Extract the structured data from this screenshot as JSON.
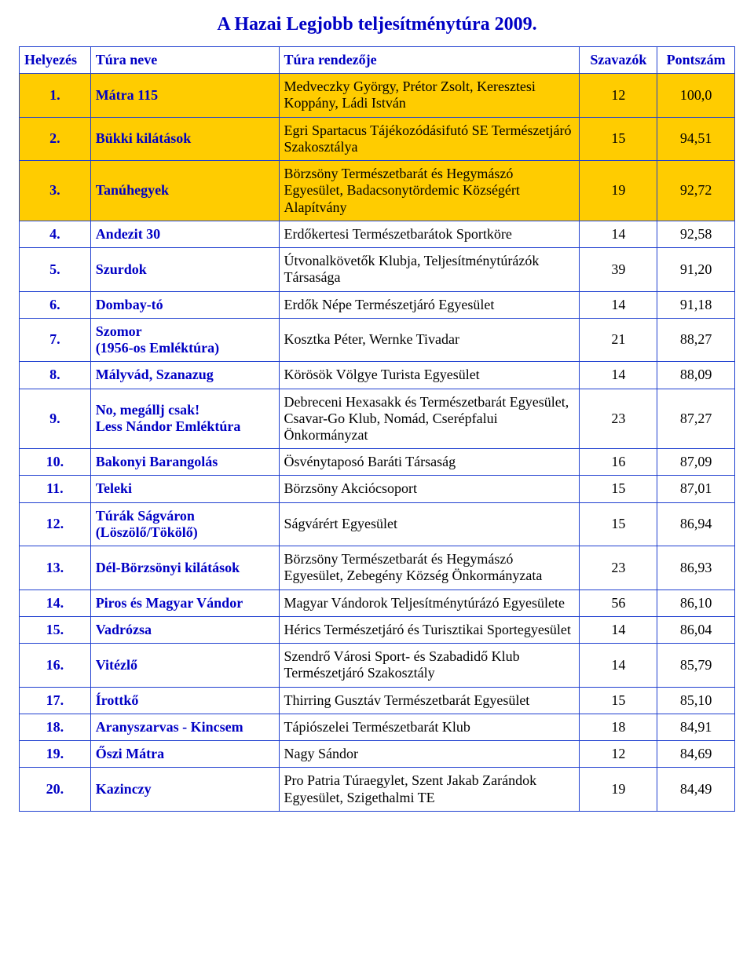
{
  "title": "A Hazai Legjobb teljesítménytúra 2009.",
  "colors": {
    "blue": "#0000c4",
    "border": "#2040d0",
    "highlight": "#ffcc00",
    "background": "#ffffff"
  },
  "columns": {
    "rank": "Helyezés",
    "name": "Túra neve",
    "org": "Túra rendezője",
    "votes": "Szavazók",
    "points": "Pontszám"
  },
  "rows": [
    {
      "rank": "1.",
      "name": "Mátra 115",
      "org": "Medveczky György, Prétor Zsolt, Keresztesi Koppány, Ládi István",
      "votes": "12",
      "points": "100,0",
      "hl": true
    },
    {
      "rank": "2.",
      "name": "Bükki kilátások",
      "org": "Egri Spartacus Tájékozódásifutó SE Természetjáró Szakosztálya",
      "votes": "15",
      "points": "94,51",
      "hl": true
    },
    {
      "rank": "3.",
      "name": "Tanúhegyek",
      "org": "Börzsöny Természetbarát és Hegymászó Egyesület, Badacsonytördemic Községért Alapítvány",
      "votes": "19",
      "points": "92,72",
      "hl": true
    },
    {
      "rank": "4.",
      "name": "Andezit 30",
      "org": "Erdőkertesi Természetbarátok Sportköre",
      "votes": "14",
      "points": "92,58",
      "hl": false
    },
    {
      "rank": "5.",
      "name": "Szurdok",
      "org": "Útvonalkövetők Klubja, Teljesítménytúrázók Társasága",
      "votes": "39",
      "points": "91,20",
      "hl": false
    },
    {
      "rank": "6.",
      "name": "Dombay-tó",
      "org": "Erdők Népe Természetjáró Egyesület",
      "votes": "14",
      "points": "91,18",
      "hl": false
    },
    {
      "rank": "7.",
      "name": "Szomor\n(1956-os Emléktúra)",
      "org": "Kosztka Péter, Wernke Tivadar",
      "votes": "21",
      "points": "88,27",
      "hl": false
    },
    {
      "rank": "8.",
      "name": "Mályvád, Szanazug",
      "org": "Körösök Völgye Turista Egyesület",
      "votes": "14",
      "points": "88,09",
      "hl": false
    },
    {
      "rank": "9.",
      "name": "No, megállj csak!\nLess Nándor Emléktúra",
      "org": "Debreceni Hexasakk és Természetbarát Egyesület, Csavar-Go Klub, Nomád, Cserépfalui Önkormányzat",
      "votes": "23",
      "points": "87,27",
      "hl": false
    },
    {
      "rank": "10.",
      "name": "Bakonyi Barangolás",
      "org": "Ösvénytaposó Baráti Társaság",
      "votes": "16",
      "points": "87,09",
      "hl": false
    },
    {
      "rank": "11.",
      "name": "Teleki",
      "org": "Börzsöny Akciócsoport",
      "votes": "15",
      "points": "87,01",
      "hl": false
    },
    {
      "rank": "12.",
      "name": "Túrák Ságváron\n(Löszölő/Tökölő)",
      "org": "Ságvárért Egyesület",
      "votes": "15",
      "points": "86,94",
      "hl": false
    },
    {
      "rank": "13.",
      "name": "Dél-Börzsönyi kilátások",
      "org": "Börzsöny Természetbarát és Hegymászó Egyesület, Zebegény Község Önkormányzata",
      "votes": "23",
      "points": "86,93",
      "hl": false
    },
    {
      "rank": "14.",
      "name": "Piros és Magyar Vándor",
      "org": "Magyar Vándorok Teljesítménytúrázó Egyesülete",
      "votes": "56",
      "points": "86,10",
      "hl": false
    },
    {
      "rank": "15.",
      "name": "Vadrózsa",
      "org": "Hérics Természetjáró és Turisztikai Sportegyesület",
      "votes": "14",
      "points": "86,04",
      "hl": false
    },
    {
      "rank": "16.",
      "name": "Vitézlő",
      "org": "Szendrő Városi Sport- és Szabadidő Klub Természetjáró Szakosztály",
      "votes": "14",
      "points": "85,79",
      "hl": false
    },
    {
      "rank": "17.",
      "name": "Írottkő",
      "org": "Thirring Gusztáv Természetbarát Egyesület",
      "votes": "15",
      "points": "85,10",
      "hl": false
    },
    {
      "rank": "18.",
      "name": "Aranyszarvas - Kincsem",
      "org": "Tápiószelei Természetbarát Klub",
      "votes": "18",
      "points": "84,91",
      "hl": false
    },
    {
      "rank": "19.",
      "name": "Őszi Mátra",
      "org": "Nagy Sándor",
      "votes": "12",
      "points": "84,69",
      "hl": false
    },
    {
      "rank": "20.",
      "name": "Kazinczy",
      "org": "Pro Patria Túraegylet, Szent Jakab Zarándok Egyesület, Szigethalmi TE",
      "votes": "19",
      "points": "84,49",
      "hl": false
    }
  ]
}
